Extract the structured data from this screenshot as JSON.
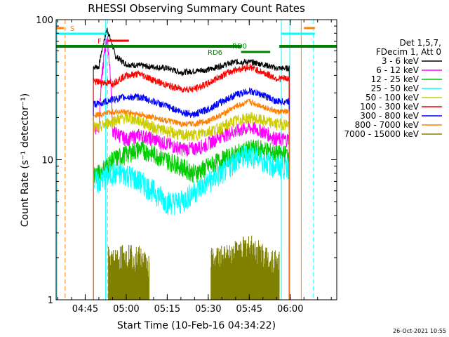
{
  "chart_data": {
    "type": "line",
    "title": "RHESSI Observing Summary Count Rates",
    "xlabel": "Start Time (10-Feb-16 04:34:22)",
    "ylabel": "Count Rate (s⁻¹ detector⁻¹)",
    "yscale": "log",
    "ylim": [
      1,
      100
    ],
    "xlim": [
      "04:34:22",
      "06:17:00"
    ],
    "x_ticks": [
      "04:45",
      "05:00",
      "05:15",
      "05:30",
      "05:45",
      "06:00"
    ],
    "y_ticks": [
      "1",
      "10",
      "100"
    ],
    "legend_header": [
      "Det 1,5,7,",
      "FDecim 1, Att 0"
    ],
    "footer": "26-Oct-2021 10:55",
    "series": [
      {
        "name": "3 - 6 keV",
        "color": "#000000",
        "x": [
          "04:50",
          "04:53",
          "04:56",
          "05:00",
          "05:05",
          "05:10",
          "05:15",
          "05:20",
          "05:25",
          "05:30",
          "05:35",
          "05:40",
          "05:45",
          "05:50",
          "05:55"
        ],
        "y": [
          46,
          85,
          55,
          48,
          47,
          46,
          45,
          42,
          43,
          44,
          47,
          50,
          50,
          48,
          45
        ]
      },
      {
        "name": "6 - 12 keV",
        "color": "#ff00ff",
        "x": [
          "04:50",
          "04:53",
          "04:55",
          "05:00",
          "05:05",
          "05:10",
          "05:15",
          "05:20",
          "05:25",
          "05:30",
          "05:35",
          "05:40",
          "05:45",
          "05:50",
          "05:55"
        ],
        "y": [
          17,
          75,
          16,
          14,
          15,
          14,
          13,
          12,
          12,
          13,
          15,
          16,
          17,
          16,
          14
        ]
      },
      {
        "name": "12 - 25 keV",
        "color": "#00cc00",
        "x": [
          "04:50",
          "04:55",
          "05:00",
          "05:05",
          "05:10",
          "05:15",
          "05:20",
          "05:25",
          "05:30",
          "05:35",
          "05:40",
          "05:45",
          "05:50",
          "05:55"
        ],
        "y": [
          8,
          10,
          11,
          12,
          11,
          10,
          9,
          8,
          9,
          10,
          11,
          12,
          12,
          11
        ]
      },
      {
        "name": "25 - 50 keV",
        "color": "#00ffff",
        "x": [
          "04:50",
          "04:55",
          "05:00",
          "05:05",
          "05:10",
          "05:15",
          "05:20",
          "05:25",
          "05:30",
          "05:35",
          "05:40",
          "05:45",
          "05:50",
          "05:55"
        ],
        "y": [
          7,
          8,
          8,
          7,
          6,
          5,
          5,
          6,
          7,
          8,
          10,
          11,
          10,
          9
        ]
      },
      {
        "name": "50 - 100 keV",
        "color": "#cccc00",
        "x": [
          "04:50",
          "04:55",
          "05:00",
          "05:05",
          "05:10",
          "05:15",
          "05:20",
          "05:25",
          "05:30",
          "05:35",
          "05:40",
          "05:45",
          "05:50",
          "05:55"
        ],
        "y": [
          17,
          19,
          20,
          19,
          17,
          16,
          15,
          15,
          16,
          17,
          19,
          20,
          19,
          18
        ]
      },
      {
        "name": "100 - 300 keV",
        "color": "#ff0000",
        "x": [
          "04:50",
          "04:55",
          "05:00",
          "05:05",
          "05:10",
          "05:15",
          "05:20",
          "05:25",
          "05:30",
          "05:35",
          "05:40",
          "05:45",
          "05:50",
          "05:55"
        ],
        "y": [
          36,
          35,
          40,
          41,
          37,
          34,
          32,
          32,
          35,
          40,
          44,
          46,
          42,
          38
        ]
      },
      {
        "name": "300 - 800 keV",
        "color": "#0000ff",
        "x": [
          "04:50",
          "04:55",
          "05:00",
          "05:05",
          "05:10",
          "05:15",
          "05:20",
          "05:25",
          "05:30",
          "05:35",
          "05:40",
          "05:45",
          "05:50",
          "05:55"
        ],
        "y": [
          25,
          27,
          28,
          28,
          26,
          24,
          22,
          21,
          23,
          26,
          29,
          31,
          29,
          26
        ]
      },
      {
        "name": "800 - 7000 keV",
        "color": "#ff8000",
        "x": [
          "04:50",
          "04:55",
          "05:00",
          "05:05",
          "05:10",
          "05:15",
          "05:20",
          "05:25",
          "05:30",
          "05:35",
          "05:40",
          "05:45",
          "05:50",
          "05:55"
        ],
        "y": [
          21,
          22,
          22,
          21,
          20,
          19,
          18,
          18,
          19,
          21,
          24,
          26,
          24,
          22
        ]
      },
      {
        "name": "7000 - 15000 keV",
        "color": "#808000",
        "x": [
          "04:53",
          "04:55",
          "05:00",
          "05:05",
          "05:08",
          "05:35",
          "05:40",
          "05:45",
          "05:50",
          "05:55"
        ],
        "y": [
          1.8,
          1.7,
          1.9,
          1.8,
          1.6,
          1.8,
          2.0,
          2.2,
          1.9,
          1.7
        ]
      }
    ],
    "flag_labels": [
      "S",
      "F",
      "RD0",
      "RD6"
    ]
  }
}
